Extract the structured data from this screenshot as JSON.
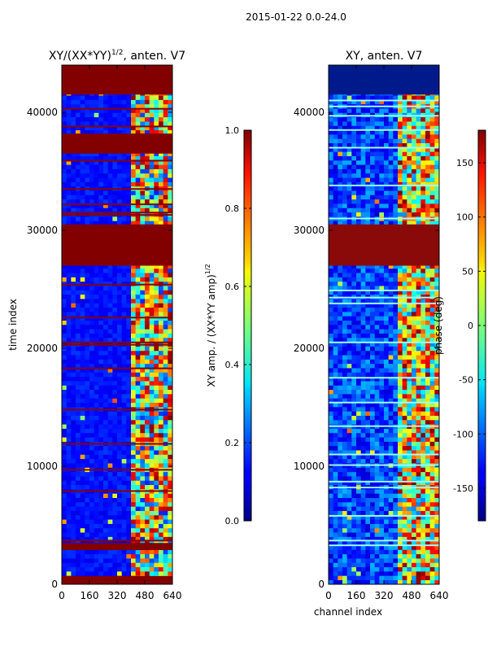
{
  "figure_title": "2015-01-22 0.0-24.0",
  "chart_data": [
    {
      "type": "heatmap",
      "title": "XY/(XX*YY)^1/2, anten. V7",
      "title_main": "XY/(XX*YY)",
      "title_exp": "1/2",
      "title_tail": ", anten. V7",
      "xlabel": "",
      "ylabel": "time index",
      "xlim": [
        0,
        640
      ],
      "ylim": [
        0,
        44000
      ],
      "xticks": [
        "0",
        "160",
        "320",
        "480",
        "640"
      ],
      "yticks": [
        "0",
        "10000",
        "20000",
        "30000",
        "40000"
      ],
      "colorbar": {
        "label_main": "XY amp. / (XX*YY amp)",
        "label_exp": "1/2",
        "range": [
          0.0,
          1.0
        ],
        "ticks": [
          "0.0",
          "0.2",
          "0.4",
          "0.6",
          "0.8",
          "1.0"
        ]
      },
      "saturated_bands": [
        [
          0,
          700
        ],
        [
          2900,
          3500
        ],
        [
          27000,
          30500
        ],
        [
          36500,
          38200
        ],
        [
          41500,
          44000
        ]
      ],
      "flagged_rows": [
        3700,
        7900,
        9700,
        11900,
        14800,
        18300,
        20300,
        20500,
        22600,
        25400,
        31300,
        31500,
        32200,
        33500,
        35900,
        38800,
        40300
      ],
      "active_channel_range": [
        400,
        640
      ]
    },
    {
      "type": "heatmap",
      "title": "XY, anten. V7",
      "xlabel": "channel index",
      "ylabel": "",
      "xlim": [
        0,
        640
      ],
      "ylim": [
        0,
        44000
      ],
      "xticks": [
        "0",
        "160",
        "320",
        "480",
        "640"
      ],
      "yticks": [
        "0",
        "10000",
        "20000",
        "30000",
        "40000"
      ],
      "colorbar": {
        "label": "phase (deg)",
        "range": [
          -180,
          180
        ],
        "ticks": [
          "-150",
          "-100",
          "-50",
          "0",
          "50",
          "100",
          "150"
        ]
      },
      "saturated_bands": [
        [
          27000,
          30500
        ],
        [
          41500,
          44000
        ]
      ],
      "flagged_rows": [
        3300,
        3700,
        5800,
        8200,
        8700,
        10100,
        11000,
        13400,
        15400,
        17500,
        20500,
        23800,
        24300,
        24900,
        31000,
        33800,
        37000,
        38500,
        39700,
        40500,
        41000
      ],
      "active_channel_range": [
        400,
        640
      ]
    }
  ]
}
